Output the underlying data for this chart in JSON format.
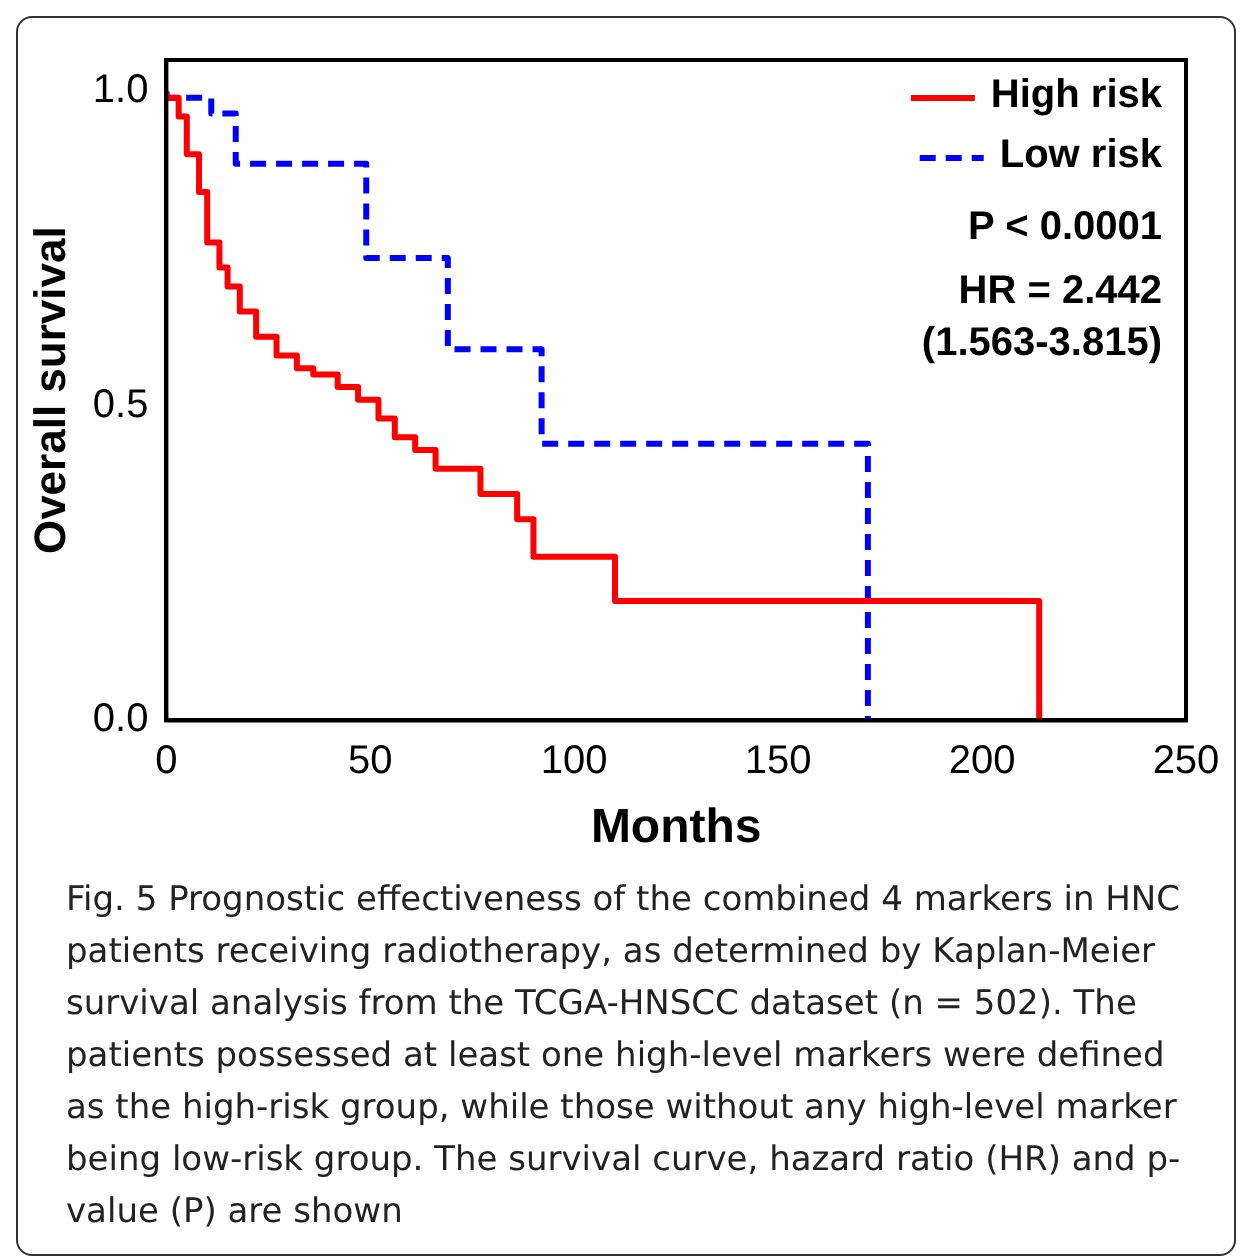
{
  "chart_data": {
    "type": "step",
    "xlabel": "Months",
    "ylabel": "Overall survival",
    "xlim": [
      0,
      250
    ],
    "xticks": [
      0,
      50,
      100,
      150,
      200,
      250
    ],
    "ylim": [
      0,
      1.05
    ],
    "yticks": [
      {
        "value": 0,
        "label": "0.0"
      },
      0.5,
      {
        "value": 1,
        "label": "1.0"
      }
    ],
    "grid": false,
    "legend": "top right",
    "marker": "none",
    "series": [
      {
        "name": "High risk",
        "color": "#ff0000",
        "line_style": "solid",
        "x": [
          0,
          3,
          5,
          8,
          10,
          13,
          15,
          18,
          22,
          27,
          32,
          36,
          42,
          47,
          52,
          56,
          61,
          66,
          77,
          86,
          90,
          110,
          156,
          214,
          214
        ],
        "values": [
          1,
          0.99,
          0.96,
          0.9,
          0.84,
          0.76,
          0.72,
          0.69,
          0.65,
          0.61,
          0.58,
          0.56,
          0.55,
          0.53,
          0.51,
          0.48,
          0.45,
          0.43,
          0.4,
          0.36,
          0.32,
          0.26,
          0.19,
          0.19,
          0
        ]
      },
      {
        "name": "Low risk",
        "color": "#0000ff",
        "line_style": "dashed",
        "x": [
          0,
          11,
          17,
          49,
          69,
          92,
          97,
          172,
          172
        ],
        "values": [
          1,
          0.99,
          0.965,
          0.885,
          0.735,
          0.59,
          0.44,
          0.44,
          0
        ]
      }
    ],
    "annotations": [
      "P < 0.0001",
      "HR = 2.442\n(1.563-3.815)",
      "Fig. 5 Prognostic effectiveness of the combined 4 markers in HNC patients receiving radiotherapy, as determined by Kaplan-Meier survival analysis from the TCGA-HNSCC dataset (n = 502). The patients possessed at least one high-level markers were defined as the high-risk group, while those without any high-level marker being low-risk group. The survival curve, hazard ratio (HR) and p-value (P) are shown"
    ]
  }
}
